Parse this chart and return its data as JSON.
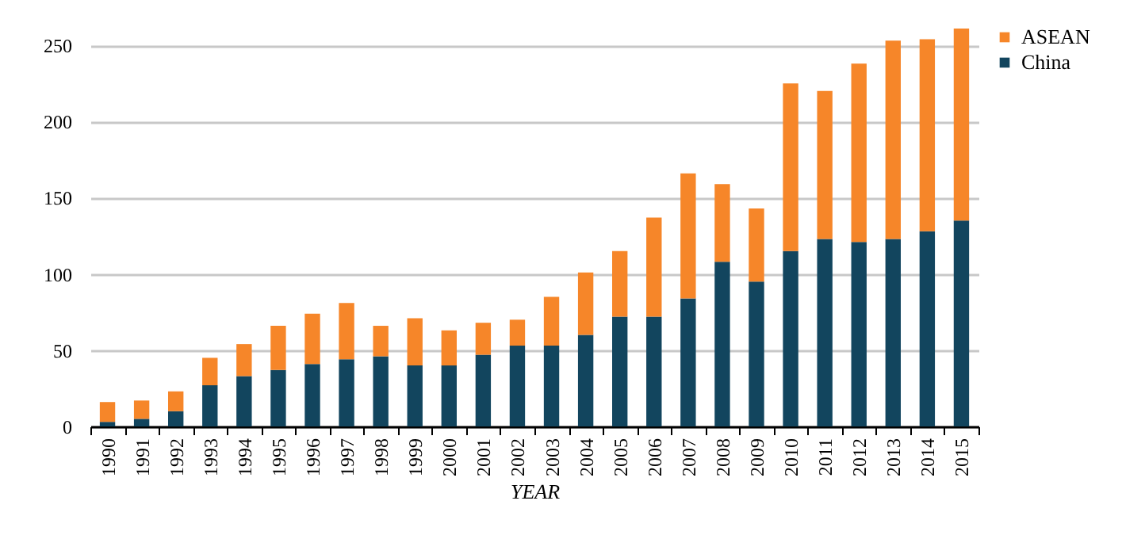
{
  "chart_data": {
    "type": "bar",
    "xlabel": "YEAR",
    "stacked": true,
    "grid": "y",
    "legend": "right",
    "categories": [
      "1990",
      "1991",
      "1992",
      "1993",
      "1994",
      "1995",
      "1996",
      "1997",
      "1998",
      "1999",
      "2000",
      "2001",
      "2002",
      "2003",
      "2004",
      "2005",
      "2006",
      "2007",
      "2008",
      "2009",
      "2010",
      "2011",
      "2012",
      "2013",
      "2014",
      "2015"
    ],
    "ylim": [
      0,
      262
    ],
    "yticks": [
      0,
      50,
      100,
      150,
      200,
      250
    ],
    "series": [
      {
        "name": "China",
        "color": "#12455e",
        "values": [
          3,
          5,
          10,
          27,
          33,
          37,
          41,
          44,
          46,
          40,
          40,
          47,
          53,
          53,
          60,
          72,
          72,
          84,
          108,
          95,
          115,
          123,
          121,
          123,
          128,
          135
        ]
      },
      {
        "name": "ASEAN",
        "color": "#f68629",
        "values": [
          13,
          12,
          13,
          18,
          21,
          29,
          33,
          37,
          20,
          31,
          23,
          21,
          17,
          32,
          41,
          43,
          65,
          82,
          51,
          48,
          110,
          97,
          117,
          130,
          126,
          126
        ]
      }
    ]
  }
}
